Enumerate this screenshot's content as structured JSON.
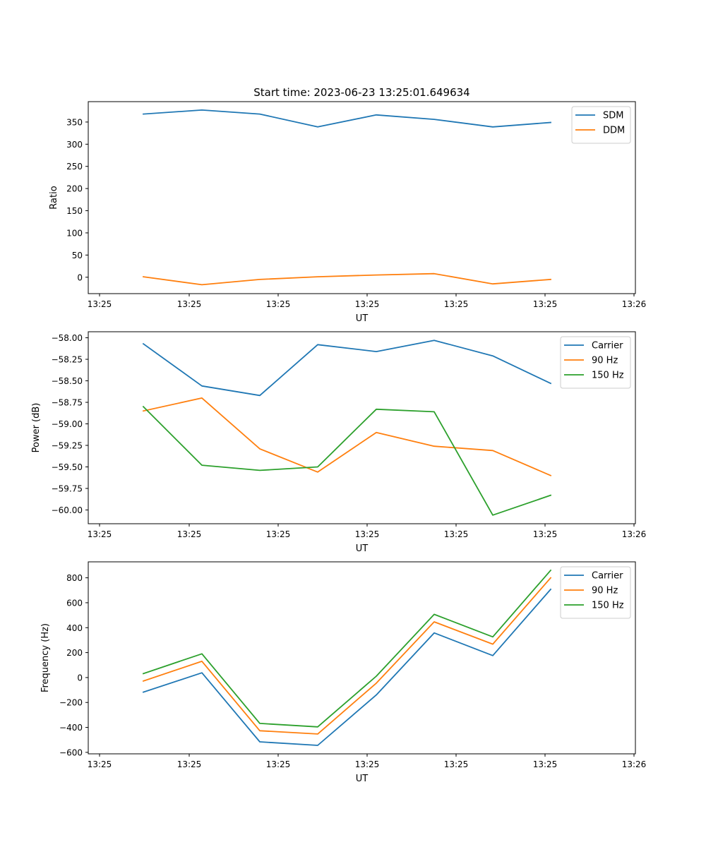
{
  "chart_data": [
    {
      "type": "line",
      "title": "Start time: 2023-06-23 13:25:01.649634",
      "xlabel": "UT",
      "ylabel": "Ratio",
      "x_tick_labels": [
        "13:25",
        "13:25",
        "13:25",
        "13:25",
        "13:25",
        "13:25",
        "13:26"
      ],
      "y_ticks": [
        0,
        50,
        100,
        150,
        200,
        250,
        300,
        350
      ],
      "y_tick_labels": [
        "0",
        "50",
        "100",
        "150",
        "200",
        "250",
        "300",
        "350"
      ],
      "ylim": [
        -37,
        396
      ],
      "legend_position": "top-right",
      "series": [
        {
          "name": "SDM",
          "color": "#1f77b4",
          "values": [
            368,
            377,
            368,
            339,
            366,
            356,
            339,
            349
          ]
        },
        {
          "name": "DDM",
          "color": "#ff7f0e",
          "values": [
            1,
            -17,
            -5,
            1,
            5,
            8,
            -15,
            -5
          ]
        }
      ]
    },
    {
      "type": "line",
      "title": "",
      "xlabel": "UT",
      "ylabel": "Power (dB)",
      "x_tick_labels": [
        "13:25",
        "13:25",
        "13:25",
        "13:25",
        "13:25",
        "13:25",
        "13:26"
      ],
      "y_ticks": [
        -60.0,
        -59.75,
        -59.5,
        -59.25,
        -59.0,
        -58.75,
        -58.5,
        -58.25,
        -58.0
      ],
      "y_tick_labels": [
        "−60.00",
        "−59.75",
        "−59.50",
        "−59.25",
        "−59.00",
        "−58.75",
        "−58.50",
        "−58.25",
        "−58.00"
      ],
      "ylim": [
        -60.16,
        -57.93
      ],
      "legend_position": "top-right",
      "series": [
        {
          "name": "Carrier",
          "color": "#1f77b4",
          "values": [
            -58.07,
            -58.56,
            -58.67,
            -58.08,
            -58.16,
            -58.03,
            -58.21,
            -58.53
          ]
        },
        {
          "name": "90 Hz",
          "color": "#ff7f0e",
          "values": [
            -58.85,
            -58.7,
            -59.29,
            -59.56,
            -59.1,
            -59.26,
            -59.31,
            -59.6
          ]
        },
        {
          "name": "150 Hz",
          "color": "#2ca02c",
          "values": [
            -58.8,
            -59.48,
            -59.54,
            -59.5,
            -58.83,
            -58.86,
            -60.06,
            -59.83
          ]
        }
      ]
    },
    {
      "type": "line",
      "title": "",
      "xlabel": "UT",
      "ylabel": "Frequency (Hz)",
      "x_tick_labels": [
        "13:25",
        "13:25",
        "13:25",
        "13:25",
        "13:25",
        "13:25",
        "13:26"
      ],
      "y_ticks": [
        -600,
        -400,
        -200,
        0,
        200,
        400,
        600,
        800
      ],
      "y_tick_labels": [
        "−600",
        "−400",
        "−200",
        "0",
        "200",
        "400",
        "600",
        "800"
      ],
      "ylim": [
        -612,
        928
      ],
      "legend_position": "top-right",
      "series": [
        {
          "name": "Carrier",
          "color": "#1f77b4",
          "values": [
            -117,
            38,
            -516,
            -544,
            -140,
            358,
            176,
            708
          ]
        },
        {
          "name": "90 Hz",
          "color": "#ff7f0e",
          "values": [
            -28,
            130,
            -427,
            -453,
            -45,
            447,
            268,
            800
          ]
        },
        {
          "name": "150 Hz",
          "color": "#2ca02c",
          "values": [
            32,
            190,
            -368,
            -396,
            11,
            507,
            326,
            860
          ]
        }
      ]
    }
  ]
}
